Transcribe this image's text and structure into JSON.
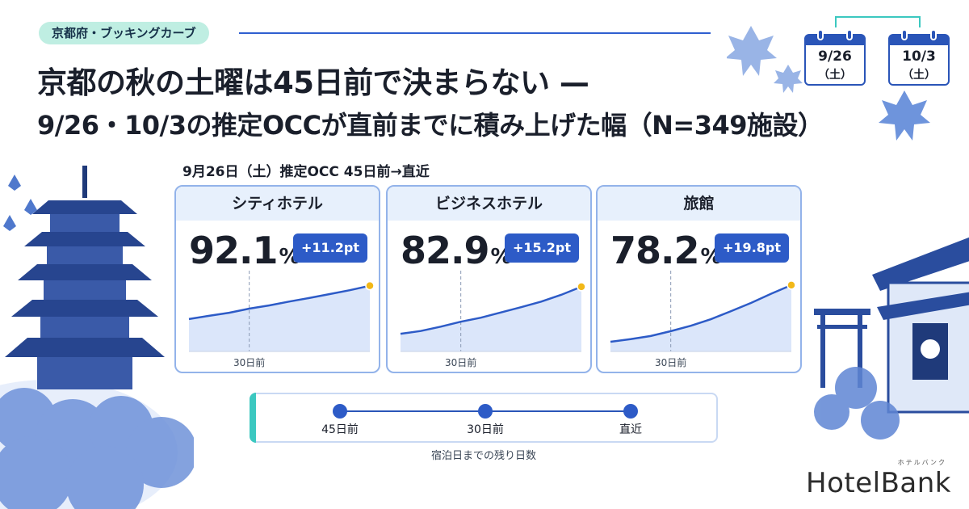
{
  "tag": "京都府・ブッキングカーブ",
  "title_line1": "京都の秋の土曜は45日前で決まらない —",
  "title_line2": "9/26・10/3の推定OCCが直前までに積み上げた幅（N=349施設）",
  "calendars": [
    {
      "date": "9/26",
      "weekday": "（土）"
    },
    {
      "date": "10/3",
      "weekday": "（土）"
    }
  ],
  "section_label": "9月26日（土）推定OCC 45日前→直近",
  "colors": {
    "accent": "#2d5bc7",
    "card_border": "#93b3ea",
    "teal": "#3cc8c0",
    "end_marker": "#f2b818"
  },
  "chart_data": [
    {
      "type": "area",
      "title": "シティホテル",
      "occ_value": "92.1",
      "unit": "%",
      "delta": "+11.2pt",
      "marker_label": "30日前",
      "marker_x": 30,
      "xlim": [
        45,
        0
      ],
      "ylim": [
        70,
        95
      ],
      "series": [
        {
          "x": [
            45,
            40,
            35,
            30,
            25,
            20,
            15,
            10,
            5,
            0
          ],
          "y": [
            80.9,
            82.0,
            83.0,
            84.4,
            85.5,
            86.8,
            88.0,
            89.3,
            90.6,
            92.1
          ]
        }
      ]
    },
    {
      "type": "area",
      "title": "ビジネスホテル",
      "occ_value": "82.9",
      "unit": "%",
      "delta": "+15.2pt",
      "marker_label": "30日前",
      "marker_x": 30,
      "xlim": [
        45,
        0
      ],
      "ylim": [
        62,
        86
      ],
      "series": [
        {
          "x": [
            45,
            40,
            35,
            30,
            25,
            20,
            15,
            10,
            5,
            0
          ],
          "y": [
            67.7,
            68.6,
            70.0,
            71.6,
            72.9,
            74.6,
            76.3,
            78.1,
            80.3,
            82.9
          ]
        }
      ]
    },
    {
      "type": "area",
      "title": "旅館",
      "occ_value": "78.2",
      "unit": "%",
      "delta": "+19.8pt",
      "marker_label": "30日前",
      "marker_x": 30,
      "xlim": [
        45,
        0
      ],
      "ylim": [
        55,
        81
      ],
      "series": [
        {
          "x": [
            45,
            40,
            35,
            30,
            25,
            20,
            15,
            10,
            5,
            0
          ],
          "y": [
            58.4,
            59.3,
            60.4,
            62.1,
            64.0,
            66.3,
            69.1,
            72.0,
            75.2,
            78.2
          ]
        }
      ]
    }
  ],
  "timeline": {
    "points": [
      "45日前",
      "30日前",
      "直近"
    ],
    "title": "宿泊日までの残り日数"
  },
  "brand": {
    "name": "HotelBank",
    "kana": "ホテルバンク"
  }
}
